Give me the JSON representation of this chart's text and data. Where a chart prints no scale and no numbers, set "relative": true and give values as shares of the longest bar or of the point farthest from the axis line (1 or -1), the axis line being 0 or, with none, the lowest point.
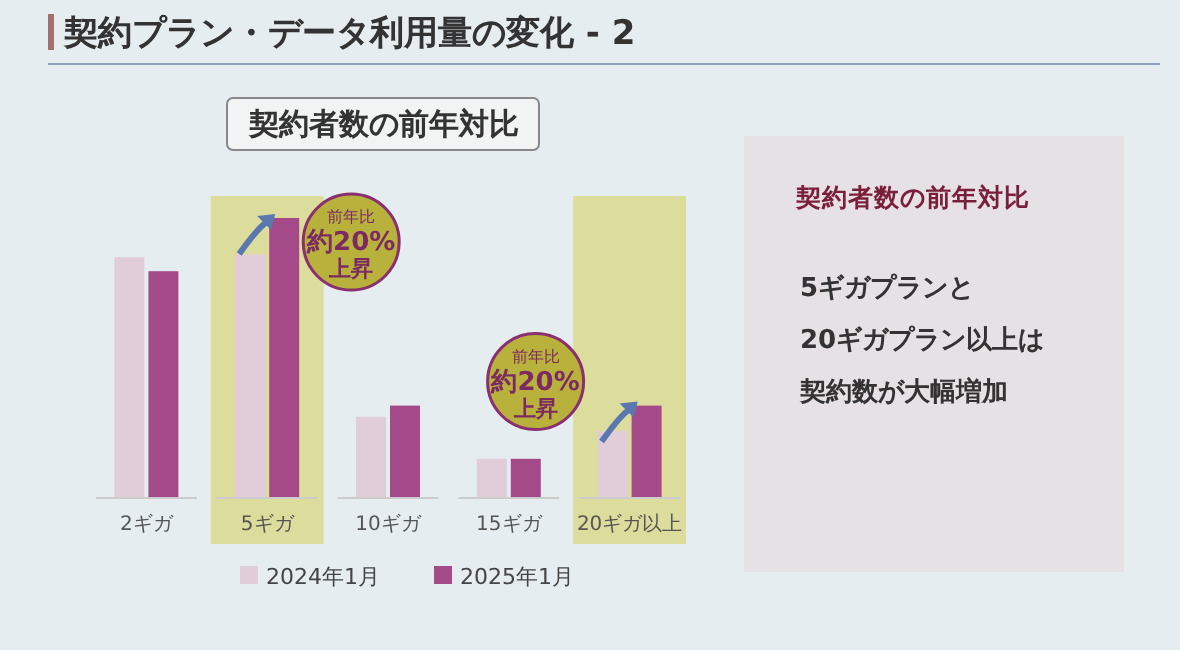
{
  "chart_data": [
    {
      "type": "bar",
      "title": "契約プラン・データ利用量の変化 - 2",
      "subtitle": "契約者数の前年対比",
      "relative": true,
      "legend": "bottom",
      "categories": [
        "2ギガ",
        "5ギガ",
        "10ギガ",
        "15ギガ",
        "20ギガ以上"
      ],
      "series": [
        {
          "name": "2024年1月",
          "color": "#e0cdd9",
          "values": [
            0.86,
            0.87,
            0.29,
            0.14,
            0.24
          ]
        },
        {
          "name": "2025年1月",
          "color": "#a54a88",
          "values": [
            0.81,
            1,
            0.33,
            0.14,
            0.33
          ]
        }
      ],
      "bands": [
        {
          "axis": "x",
          "from": "5ギガ",
          "to": "5ギガ",
          "color": "#dcdc9c"
        },
        {
          "axis": "x",
          "from": "20ギガ以上",
          "to": "20ギガ以上",
          "color": "#dcdc9c"
        }
      ],
      "annotations": [
        "前年比約20%上昇",
        "前年比約20%上昇"
      ]
    },
    {
      "type": "other",
      "title": "契約者数の前年対比",
      "annotations": [
        "5ギガプランと",
        "20ギガプラン以上は",
        "契約数が大幅増加"
      ]
    }
  ]
}
